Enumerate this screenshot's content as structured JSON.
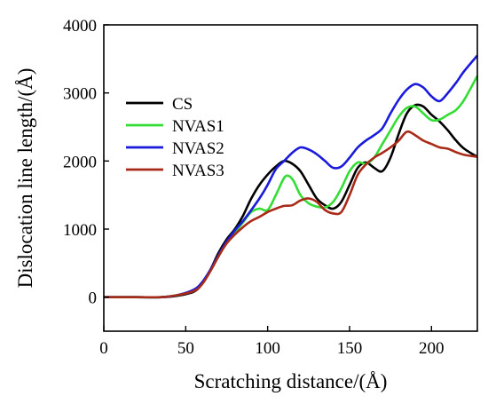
{
  "chart_data": {
    "type": "line",
    "xlabel": "Scratching distance/(Å)",
    "ylabel": "Dislocation line length/(Å)",
    "xlim": [
      0,
      228
    ],
    "ylim": [
      -500,
      4000
    ],
    "xticks": [
      0,
      50,
      100,
      150,
      200
    ],
    "yticks": [
      0,
      1000,
      2000,
      3000,
      4000
    ],
    "grid": false,
    "legend": "left",
    "colors": {
      "CS": "#000000",
      "NVAS1": "#33dd33",
      "NVAS2": "#1a1adc",
      "NVAS3": "#a82a18"
    },
    "series": [
      {
        "name": "CS",
        "points": [
          [
            0,
            0
          ],
          [
            20,
            0
          ],
          [
            35,
            0
          ],
          [
            45,
            20
          ],
          [
            55,
            80
          ],
          [
            60,
            200
          ],
          [
            65,
            400
          ],
          [
            70,
            650
          ],
          [
            75,
            850
          ],
          [
            80,
            1000
          ],
          [
            85,
            1200
          ],
          [
            90,
            1450
          ],
          [
            95,
            1650
          ],
          [
            100,
            1800
          ],
          [
            105,
            1920
          ],
          [
            110,
            2000
          ],
          [
            115,
            1960
          ],
          [
            120,
            1850
          ],
          [
            125,
            1650
          ],
          [
            130,
            1450
          ],
          [
            135,
            1350
          ],
          [
            140,
            1300
          ],
          [
            145,
            1400
          ],
          [
            150,
            1650
          ],
          [
            155,
            1900
          ],
          [
            160,
            1980
          ],
          [
            165,
            1900
          ],
          [
            170,
            1850
          ],
          [
            175,
            2050
          ],
          [
            180,
            2400
          ],
          [
            185,
            2700
          ],
          [
            190,
            2820
          ],
          [
            195,
            2800
          ],
          [
            200,
            2680
          ],
          [
            205,
            2580
          ],
          [
            210,
            2450
          ],
          [
            215,
            2300
          ],
          [
            220,
            2180
          ],
          [
            228,
            2060
          ]
        ]
      },
      {
        "name": "NVAS1",
        "points": [
          [
            0,
            0
          ],
          [
            20,
            0
          ],
          [
            35,
            0
          ],
          [
            45,
            30
          ],
          [
            55,
            100
          ],
          [
            60,
            200
          ],
          [
            65,
            380
          ],
          [
            70,
            600
          ],
          [
            75,
            800
          ],
          [
            80,
            950
          ],
          [
            85,
            1100
          ],
          [
            90,
            1250
          ],
          [
            95,
            1300
          ],
          [
            100,
            1280
          ],
          [
            105,
            1500
          ],
          [
            110,
            1750
          ],
          [
            113,
            1780
          ],
          [
            116,
            1700
          ],
          [
            120,
            1500
          ],
          [
            125,
            1380
          ],
          [
            130,
            1330
          ],
          [
            135,
            1320
          ],
          [
            140,
            1400
          ],
          [
            145,
            1600
          ],
          [
            150,
            1850
          ],
          [
            155,
            1980
          ],
          [
            160,
            1960
          ],
          [
            165,
            2050
          ],
          [
            170,
            2250
          ],
          [
            175,
            2450
          ],
          [
            180,
            2650
          ],
          [
            185,
            2780
          ],
          [
            190,
            2800
          ],
          [
            195,
            2700
          ],
          [
            200,
            2600
          ],
          [
            205,
            2610
          ],
          [
            210,
            2680
          ],
          [
            215,
            2750
          ],
          [
            220,
            2900
          ],
          [
            228,
            3250
          ]
        ]
      },
      {
        "name": "NVAS2",
        "points": [
          [
            0,
            0
          ],
          [
            20,
            0
          ],
          [
            35,
            0
          ],
          [
            45,
            30
          ],
          [
            55,
            110
          ],
          [
            60,
            220
          ],
          [
            65,
            400
          ],
          [
            70,
            620
          ],
          [
            75,
            820
          ],
          [
            80,
            980
          ],
          [
            85,
            1120
          ],
          [
            90,
            1280
          ],
          [
            95,
            1450
          ],
          [
            100,
            1650
          ],
          [
            105,
            1880
          ],
          [
            110,
            2000
          ],
          [
            115,
            2120
          ],
          [
            120,
            2200
          ],
          [
            125,
            2170
          ],
          [
            130,
            2100
          ],
          [
            135,
            2000
          ],
          [
            140,
            1900
          ],
          [
            145,
            1920
          ],
          [
            150,
            2050
          ],
          [
            155,
            2200
          ],
          [
            160,
            2300
          ],
          [
            165,
            2380
          ],
          [
            170,
            2480
          ],
          [
            175,
            2700
          ],
          [
            180,
            2900
          ],
          [
            185,
            3050
          ],
          [
            190,
            3130
          ],
          [
            195,
            3080
          ],
          [
            200,
            2950
          ],
          [
            205,
            2880
          ],
          [
            210,
            3000
          ],
          [
            215,
            3150
          ],
          [
            220,
            3320
          ],
          [
            228,
            3550
          ]
        ]
      },
      {
        "name": "NVAS3",
        "points": [
          [
            0,
            0
          ],
          [
            20,
            0
          ],
          [
            35,
            0
          ],
          [
            45,
            30
          ],
          [
            55,
            90
          ],
          [
            60,
            190
          ],
          [
            65,
            380
          ],
          [
            70,
            600
          ],
          [
            75,
            790
          ],
          [
            80,
            920
          ],
          [
            85,
            1030
          ],
          [
            90,
            1120
          ],
          [
            95,
            1180
          ],
          [
            100,
            1250
          ],
          [
            105,
            1300
          ],
          [
            110,
            1340
          ],
          [
            115,
            1350
          ],
          [
            120,
            1420
          ],
          [
            125,
            1450
          ],
          [
            130,
            1400
          ],
          [
            135,
            1280
          ],
          [
            140,
            1230
          ],
          [
            145,
            1250
          ],
          [
            150,
            1500
          ],
          [
            155,
            1800
          ],
          [
            160,
            1950
          ],
          [
            165,
            2050
          ],
          [
            170,
            2120
          ],
          [
            175,
            2200
          ],
          [
            180,
            2300
          ],
          [
            185,
            2430
          ],
          [
            190,
            2380
          ],
          [
            195,
            2300
          ],
          [
            200,
            2250
          ],
          [
            205,
            2200
          ],
          [
            210,
            2180
          ],
          [
            215,
            2130
          ],
          [
            220,
            2090
          ],
          [
            228,
            2060
          ]
        ]
      }
    ]
  }
}
